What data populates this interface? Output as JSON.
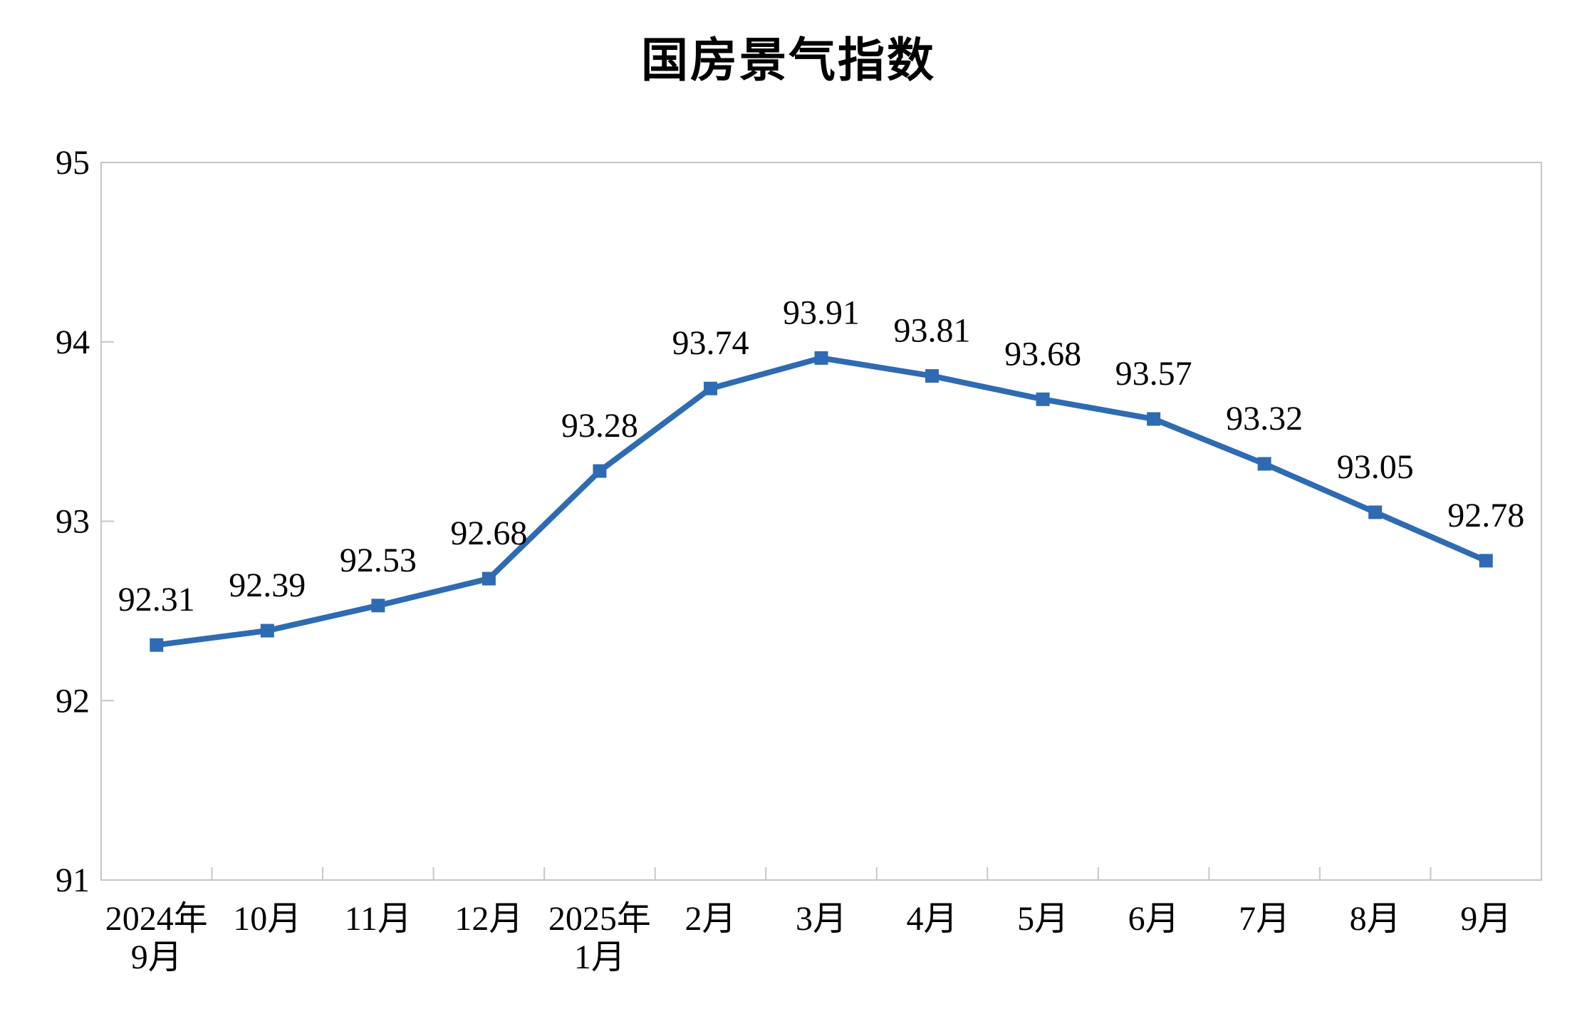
{
  "page": {
    "background": "#ffffff"
  },
  "chart_data": {
    "type": "line",
    "title": "国房景气指数",
    "categories": [
      "2024年\n9月",
      "10月",
      "11月",
      "12月",
      "2025年\n1月",
      "2月",
      "3月",
      "4月",
      "5月",
      "6月",
      "7月",
      "8月",
      "9月"
    ],
    "series": [
      {
        "name": "国房景气指数",
        "values": [
          92.31,
          92.39,
          92.53,
          92.68,
          93.28,
          93.74,
          93.91,
          93.81,
          93.68,
          93.57,
          93.32,
          93.05,
          92.78
        ],
        "color": "#2E6BB2"
      }
    ],
    "data_labels": [
      "92.31",
      "92.39",
      "92.53",
      "92.68",
      "93.28",
      "93.74",
      "93.91",
      "93.81",
      "93.68",
      "93.57",
      "93.32",
      "93.05",
      "92.78"
    ],
    "ylim": [
      91,
      95
    ],
    "yticks": [
      "91",
      "92",
      "93",
      "94",
      "95"
    ],
    "marker": "square",
    "grid": false,
    "legend_position": "none",
    "axis_color": "#C6C6C6",
    "text_color": "#000000"
  }
}
